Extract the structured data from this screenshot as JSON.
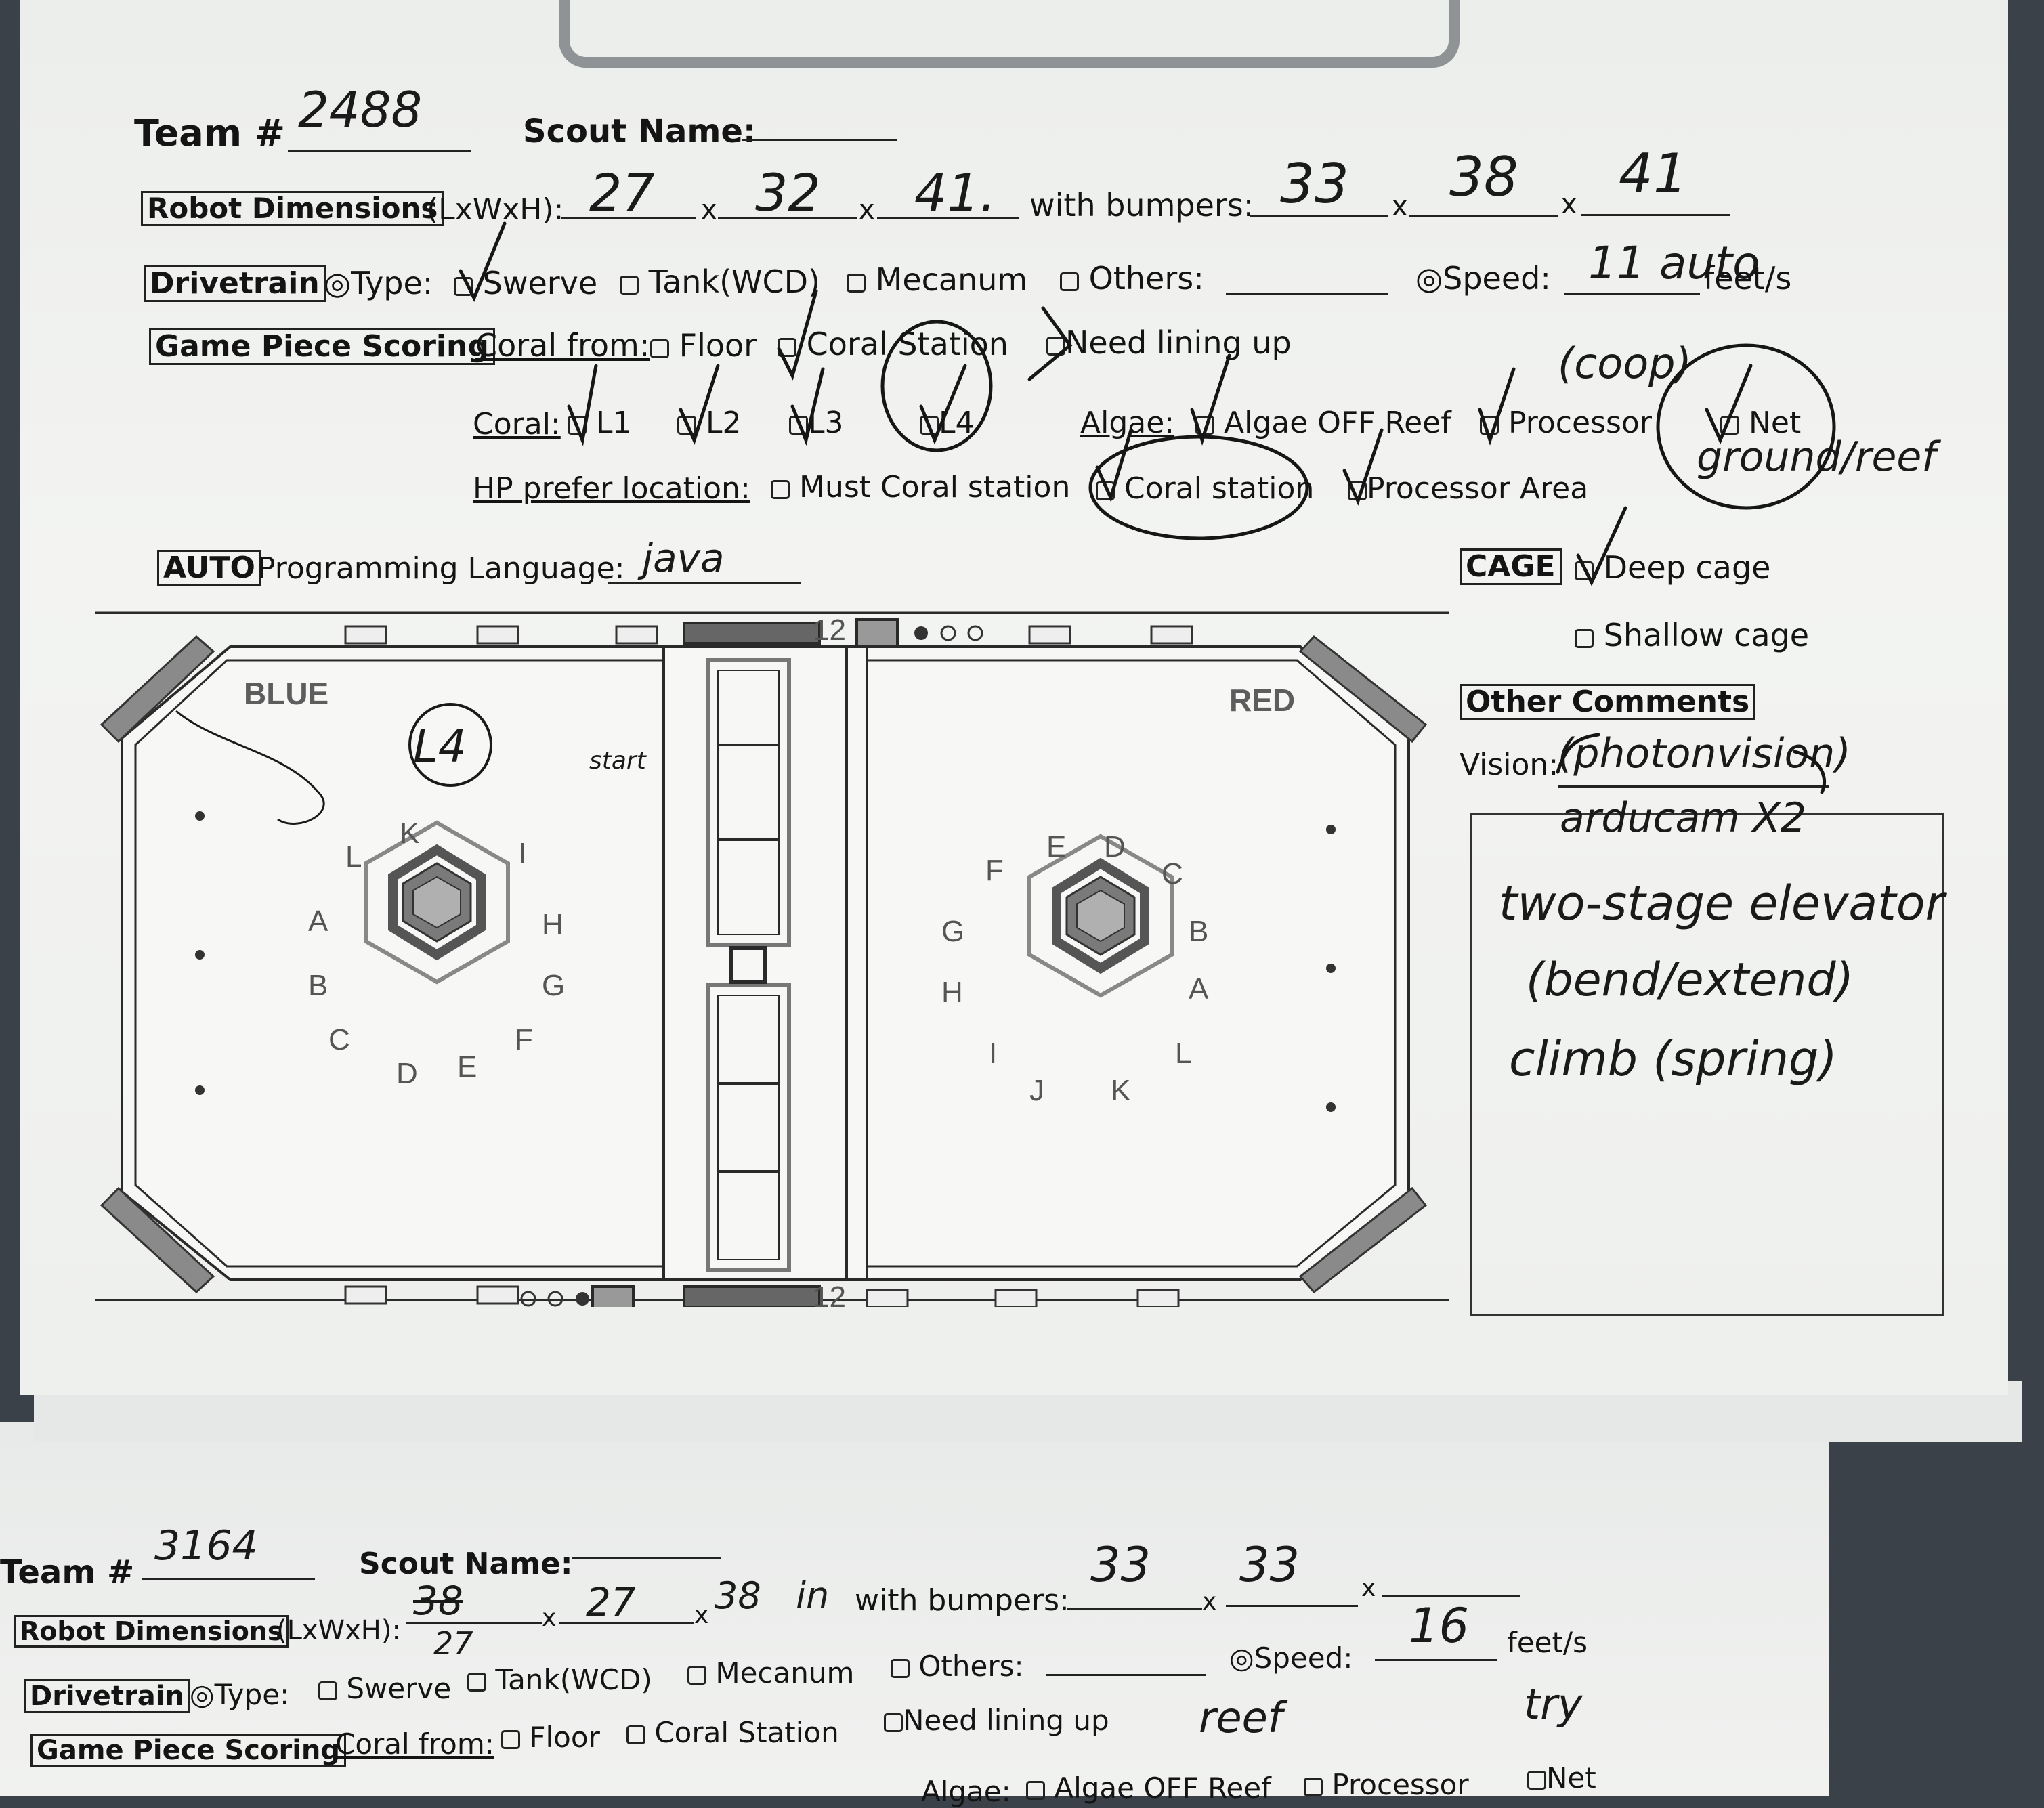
{
  "sheet1": {
    "team_label": "Team #",
    "team_value": "2488",
    "scout_label": "Scout Name:",
    "scout_value": "",
    "dims_label": "Robot Dimensions",
    "dims_suffix": "(LxWxH):",
    "dim_l": "27",
    "dim_w": "32",
    "dim_h": "41.",
    "with_bumpers": "with bumpers:",
    "bump_l": "33",
    "bump_w": "38",
    "bump_h": "41",
    "x": "x",
    "drivetrain_label": "Drivetrain",
    "type_label": "◎Type:",
    "opt_swerve": "Swerve",
    "opt_tank": "Tank(WCD)",
    "opt_mecanum": "Mecanum",
    "opt_others": "Others:",
    "speed_label": "◎Speed:",
    "speed_value": "11 auto",
    "speed_unit": "feet/s",
    "gps_label": "Game Piece Scoring",
    "coral_from": "Coral from:",
    "opt_floor": "Floor",
    "opt_coral_station": "Coral Station",
    "opt_need_lining": "Need lining up",
    "coral_label": "Coral:",
    "l1": "L1",
    "l2": "L2",
    "l3": "L3",
    "l4": "L4",
    "algae_label": "Algae:",
    "opt_algae_off": "Algae OFF Reef",
    "opt_processor": "Processor",
    "opt_net": "Net",
    "note_coop": "(coop)",
    "note_ground_reef": "ground/reef",
    "hp_label": "HP prefer location:",
    "opt_must_coral": "Must Coral station",
    "opt_coral_station2": "Coral station",
    "opt_processor_area": "Processor Area",
    "auto_label": "AUTO",
    "prog_lang_label": "Programming Language:",
    "prog_lang_value": "java",
    "cage_label": "CAGE",
    "opt_deep": "Deep cage",
    "opt_shallow": "Shallow cage",
    "other_comments": "Other Comments",
    "vision_label": "Vision:",
    "vision_value": "(photonvision)",
    "comment_lines": [
      "arducam X2",
      "two-stage elevator",
      "(bend/extend)",
      "climb (spring)"
    ]
  },
  "field": {
    "blue": "BLUE",
    "red": "RED",
    "note_l4": "L4",
    "note_start": "start",
    "blue_faces": [
      "K",
      "I",
      "L",
      "A",
      "H",
      "B",
      "G",
      "C",
      "F",
      "D",
      "E"
    ],
    "red_faces": [
      "E",
      "D",
      "F",
      "C",
      "G",
      "B",
      "H",
      "A",
      "I",
      "L",
      "J",
      "K"
    ],
    "center_tag": "12"
  },
  "sheet2": {
    "team_label": "Team #",
    "team_value": "3164",
    "scout_label": "Scout Name:",
    "dims_label": "Robot Dimensions",
    "dims_suffix": "(LxWxH):",
    "dim_l": "27",
    "dim_l_crossed": "38",
    "dim_w": "27",
    "dim_h": "38",
    "dim_h_extra": "in",
    "with_bumpers": "with bumpers:",
    "bump_l": "33",
    "bump_w": "33",
    "x": "x",
    "drivetrain_label": "Drivetrain",
    "type_label": "◎Type:",
    "opt_swerve": "Swerve",
    "opt_tank": "Tank(WCD)",
    "opt_mecanum": "Mecanum",
    "opt_others": "Others:",
    "speed_label": "◎Speed:",
    "speed_value": "16",
    "speed_unit": "feet/s",
    "gps_label": "Game Piece Scoring",
    "coral_from": "Coral from:",
    "opt_floor": "Floor",
    "opt_coral_station": "Coral Station",
    "opt_need_lining": "Need lining up",
    "note_reef": "reef",
    "note_try": "try",
    "algae_label": "Algae:",
    "opt_algae_off": "Algae OFF Reef",
    "opt_processor": "Processor",
    "opt_net": "Net"
  }
}
